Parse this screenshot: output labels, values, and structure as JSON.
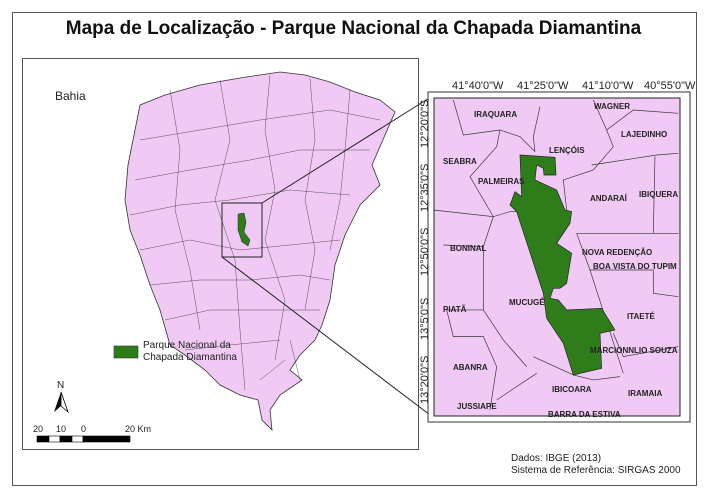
{
  "title": "Mapa de Localização - Parque Nacional da Chapada Diamantina",
  "overview_map": {
    "region_label": "Bahia"
  },
  "legend": {
    "items": [
      {
        "label_line1": "Parque Nacional da",
        "label_line2": "Chapada Diamantina",
        "color": "#2e7d1a"
      }
    ]
  },
  "north_arrow": {
    "label": "N"
  },
  "scale_bar": {
    "ticks": [
      "20",
      "10",
      "0",
      "20 Km"
    ]
  },
  "detail_map": {
    "longitude_labels": [
      "41°40'0\"W",
      "41°25'0\"W",
      "41°10'0\"W",
      "40°55'0\"W"
    ],
    "latitude_labels": [
      "12°20'0\"S",
      "12°35'0\"S",
      "12°50'0\"S",
      "13°5'0\"S",
      "13°20'0\"S"
    ],
    "municipalities": [
      "IRAQUARA",
      "WAGNER",
      "LAJEDINHO",
      "LENÇÓIS",
      "SEABRA",
      "PALMEIRAS",
      "ANDARAÍ",
      "IBIQUERA",
      "BONINAL",
      "NOVA REDENÇÃO",
      "BOA VISTA DO TUPIM",
      "PIATÃ",
      "MUCUGÊ",
      "ITAETÉ",
      "MARCIONNLIO SOUZA",
      "ABANRA",
      "IBICOARA",
      "IRAMAIA",
      "JUSSIAPE",
      "BARRA DA ESTIVA"
    ]
  },
  "credits": {
    "line1": "Dados: IBGE (2013)",
    "line2": "Sistema de Referência: SIRGAS 2000"
  },
  "colors": {
    "land": "#f1c9f5",
    "park": "#2e7d1a",
    "border": "#333333"
  }
}
